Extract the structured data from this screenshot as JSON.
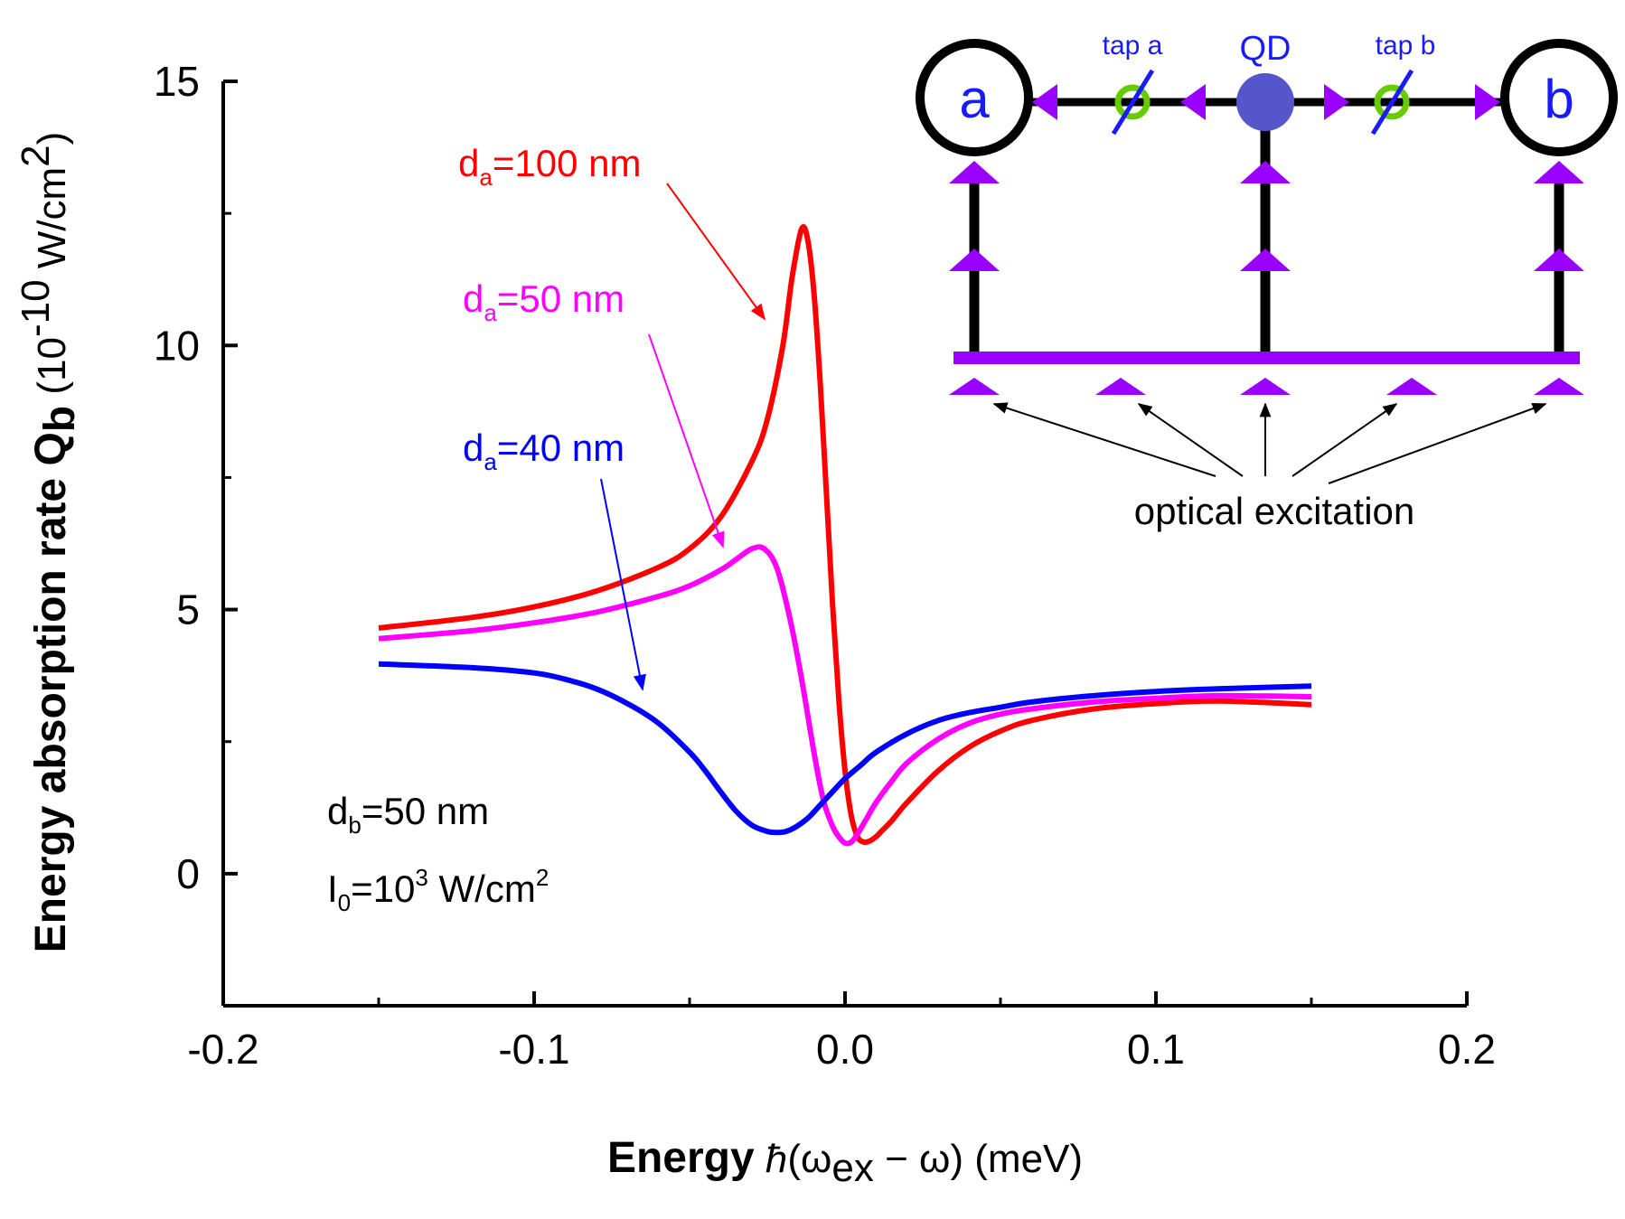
{
  "chart_data": {
    "type": "line",
    "xlabel": {
      "bold": "Energy",
      "hbar": "ħ",
      "open": "(ω",
      "sub": "ex",
      "rest": " − ω)",
      "unit": " (meV)"
    },
    "ylabel": {
      "main": "Energy absorption rate Q",
      "sub": "b",
      "unit_open": " (10",
      "sup": "-10",
      "unit_mid": " W/cm",
      "sup2": "2",
      "unit_close": ")"
    },
    "xlim": [
      -0.2,
      0.2
    ],
    "ylim": [
      -2.5,
      15
    ],
    "xticks": [
      -0.2,
      -0.1,
      0.0,
      0.1,
      0.2
    ],
    "xtick_labels": [
      "-0.2",
      "-0.1",
      "0.0",
      "0.1",
      "0.2"
    ],
    "yticks": [
      0,
      5,
      10,
      15
    ],
    "ytick_labels": [
      "0",
      "5",
      "10",
      "15"
    ],
    "series": [
      {
        "name_main": "d",
        "name_sub": "a",
        "name_rest": "=100 nm",
        "color": "#ff0000",
        "x": [
          -0.15,
          -0.12,
          -0.1,
          -0.08,
          -0.06,
          -0.05,
          -0.04,
          -0.03,
          -0.025,
          -0.02,
          -0.017,
          -0.014,
          -0.012,
          -0.01,
          -0.008,
          -0.006,
          -0.004,
          -0.002,
          0.0,
          0.002,
          0.004,
          0.006,
          0.008,
          0.01,
          0.012,
          0.015,
          0.02,
          0.03,
          0.04,
          0.05,
          0.06,
          0.08,
          0.1,
          0.12,
          0.15
        ],
        "y": [
          4.65,
          4.85,
          5.05,
          5.35,
          5.8,
          6.15,
          6.75,
          7.8,
          8.6,
          10.0,
          11.3,
          12.2,
          12.0,
          11.0,
          9.3,
          7.2,
          5.1,
          3.3,
          1.95,
          1.1,
          0.7,
          0.6,
          0.62,
          0.7,
          0.82,
          1.0,
          1.35,
          1.95,
          2.4,
          2.7,
          2.9,
          3.12,
          3.22,
          3.27,
          3.2
        ]
      },
      {
        "name_main": "d",
        "name_sub": "a",
        "name_rest": "=50 nm",
        "color": "#ff00ff",
        "x": [
          -0.15,
          -0.12,
          -0.1,
          -0.08,
          -0.06,
          -0.05,
          -0.04,
          -0.035,
          -0.03,
          -0.026,
          -0.022,
          -0.018,
          -0.014,
          -0.01,
          -0.007,
          -0.004,
          -0.002,
          0.0,
          0.002,
          0.004,
          0.007,
          0.01,
          0.015,
          0.02,
          0.03,
          0.04,
          0.05,
          0.06,
          0.08,
          0.1,
          0.12,
          0.15
        ],
        "y": [
          4.45,
          4.6,
          4.75,
          4.95,
          5.25,
          5.45,
          5.75,
          5.95,
          6.15,
          6.15,
          5.8,
          4.9,
          3.7,
          2.3,
          1.4,
          0.9,
          0.7,
          0.58,
          0.6,
          0.75,
          1.05,
          1.35,
          1.75,
          2.1,
          2.55,
          2.85,
          3.02,
          3.12,
          3.25,
          3.32,
          3.37,
          3.35
        ]
      },
      {
        "name_main": "d",
        "name_sub": "a",
        "name_rest": "=40 nm",
        "color": "#0000ff",
        "x": [
          -0.15,
          -0.12,
          -0.1,
          -0.09,
          -0.08,
          -0.07,
          -0.06,
          -0.05,
          -0.045,
          -0.04,
          -0.035,
          -0.03,
          -0.025,
          -0.022,
          -0.019,
          -0.016,
          -0.012,
          -0.008,
          -0.004,
          0.0,
          0.005,
          0.01,
          0.02,
          0.03,
          0.04,
          0.05,
          0.06,
          0.08,
          0.1,
          0.12,
          0.15
        ],
        "y": [
          3.97,
          3.9,
          3.8,
          3.68,
          3.5,
          3.22,
          2.85,
          2.3,
          1.95,
          1.55,
          1.18,
          0.92,
          0.8,
          0.78,
          0.8,
          0.88,
          1.05,
          1.3,
          1.55,
          1.8,
          2.05,
          2.3,
          2.65,
          2.9,
          3.05,
          3.15,
          3.25,
          3.37,
          3.45,
          3.5,
          3.55
        ]
      }
    ],
    "annotations": [
      {
        "main": "d",
        "sub": "b",
        "rest": "=50 nm"
      },
      {
        "main": "I",
        "sub": "0",
        "mid": "=10",
        "sup": "3",
        "rest": " W/cm",
        "sup2": "2"
      }
    ]
  },
  "inset": {
    "node_a": "a",
    "node_b": "b",
    "qd_label": "QD",
    "tap_a": "tap a",
    "tap_b": "tap b",
    "caption": "optical excitation",
    "colors": {
      "waveguide": "#000000",
      "excitation": "#9900ff",
      "qd": "#5555cc",
      "tap": "#66cc00",
      "label": "#1a1aff"
    }
  }
}
